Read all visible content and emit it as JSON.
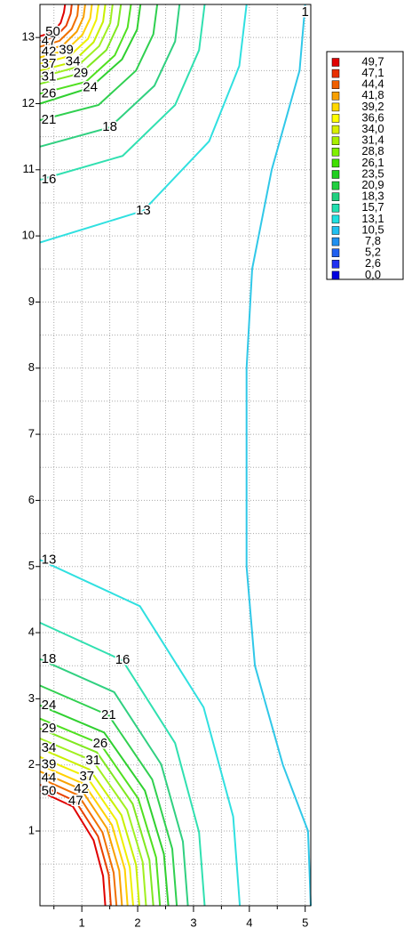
{
  "chart_data": {
    "type": "contour",
    "xlim": [
      0.25,
      5.1
    ],
    "ylim": [
      -0.13,
      13.5
    ],
    "xticks": [
      1,
      2,
      3,
      4,
      5
    ],
    "yticks": [
      1,
      2,
      3,
      4,
      5,
      6,
      7,
      8,
      9,
      10,
      11,
      12,
      13
    ],
    "minor_xticks": [
      0.5,
      1.5,
      2.5,
      3.5,
      4.5
    ],
    "minor_yticks": [
      0.5,
      1.5,
      2.5,
      3.5,
      4.5,
      5.5,
      6.5,
      7.5,
      8.5,
      9.5,
      10.5,
      11.5,
      12.5,
      13.5
    ],
    "grid": true,
    "legend_position": "right",
    "legend": {
      "labels": [
        "49,7",
        "47,1",
        "44,4",
        "41,8",
        "39,2",
        "36,6",
        "34,0",
        "31,4",
        "28,8",
        "26,1",
        "23,5",
        "20,9",
        "18,3",
        "15,7",
        "13,1",
        "10,5",
        "7,8",
        "5,2",
        "2,6",
        "0,0"
      ],
      "colors": [
        "#e00000",
        "#e83000",
        "#f06000",
        "#f8a000",
        "#ffd800",
        "#ffff00",
        "#d8f000",
        "#a8f000",
        "#80f000",
        "#40e000",
        "#20d020",
        "#20d040",
        "#20d080",
        "#20e0b0",
        "#20e0e0",
        "#20c0f0",
        "#2090f0",
        "#2060f0",
        "#2030f0",
        "#0000e0"
      ]
    },
    "series": [
      {
        "name": "13",
        "color": "#30e0e0",
        "x": [
          0.25,
          2.04,
          3.18,
          3.71,
          3.83
        ],
        "y": [
          5.1,
          4.4,
          2.87,
          1.22,
          -0.13
        ]
      },
      {
        "name": "16",
        "color": "#30e0b0",
        "x": [
          0.25,
          1.73,
          2.67,
          3.1,
          3.2
        ],
        "y": [
          4.15,
          3.58,
          2.33,
          0.98,
          -0.13
        ]
      },
      {
        "name": "18",
        "color": "#30d080",
        "x": [
          0.25,
          1.58,
          2.42,
          2.81,
          2.9
        ],
        "y": [
          3.6,
          3.1,
          2.01,
          0.84,
          -0.13
        ]
      },
      {
        "name": "21",
        "color": "#30d050",
        "x": [
          0.25,
          1.48,
          2.26,
          2.62,
          2.7
        ],
        "y": [
          3.2,
          2.75,
          1.78,
          0.73,
          -0.13
        ]
      },
      {
        "name": "24",
        "color": "#30d030",
        "x": [
          0.25,
          1.4,
          2.13,
          2.47,
          2.55
        ],
        "y": [
          2.9,
          2.49,
          1.61,
          0.65,
          -0.13
        ]
      },
      {
        "name": "26",
        "color": "#50e020",
        "x": [
          0.25,
          1.33,
          2.01,
          2.33,
          2.4
        ],
        "y": [
          2.7,
          2.32,
          1.49,
          0.6,
          -0.13
        ]
      },
      {
        "name": "29",
        "color": "#80e820",
        "x": [
          0.25,
          1.27,
          1.91,
          2.21,
          2.28
        ],
        "y": [
          2.55,
          2.19,
          1.41,
          0.56,
          -0.13
        ]
      },
      {
        "name": "31",
        "color": "#a0f020",
        "x": [
          0.25,
          1.2,
          1.81,
          2.09,
          2.15
        ],
        "y": [
          2.4,
          2.06,
          1.32,
          0.53,
          -0.13
        ]
      },
      {
        "name": "34",
        "color": "#c8f000",
        "x": [
          0.25,
          1.14,
          1.71,
          1.97,
          2.03
        ],
        "y": [
          2.25,
          1.93,
          1.24,
          0.49,
          -0.13
        ]
      },
      {
        "name": "37",
        "color": "#f0f000",
        "x": [
          0.25,
          1.09,
          1.62,
          1.86,
          1.92
        ],
        "y": [
          2.12,
          1.82,
          1.16,
          0.45,
          -0.13
        ]
      },
      {
        "name": "39",
        "color": "#ffd000",
        "x": [
          0.25,
          1.04,
          1.54,
          1.77,
          1.82
        ],
        "y": [
          2.0,
          1.71,
          1.09,
          0.42,
          -0.13
        ]
      },
      {
        "name": "42",
        "color": "#f8a000",
        "x": [
          0.25,
          0.99,
          1.45,
          1.67,
          1.72
        ],
        "y": [
          1.9,
          1.63,
          1.04,
          0.4,
          -0.13
        ]
      },
      {
        "name": "44",
        "color": "#f07000",
        "x": [
          0.25,
          0.94,
          1.37,
          1.57,
          1.62
        ],
        "y": [
          1.8,
          1.54,
          0.98,
          0.37,
          -0.13
        ]
      },
      {
        "name": "47",
        "color": "#e84000",
        "x": [
          0.25,
          0.89,
          1.29,
          1.48,
          1.52
        ],
        "y": [
          1.7,
          1.45,
          0.92,
          0.34,
          -0.13
        ]
      },
      {
        "name": "50",
        "color": "#e00000",
        "x": [
          0.25,
          0.84,
          1.21,
          1.38,
          1.42
        ],
        "y": [
          1.6,
          1.37,
          0.86,
          0.32,
          -0.13
        ]
      },
      {
        "name": "13",
        "color": "#30e0e0",
        "x": [
          0.25,
          2.1,
          3.28,
          3.82,
          3.95
        ],
        "y": [
          9.9,
          10.38,
          11.43,
          12.57,
          13.5
        ]
      },
      {
        "name": "16",
        "color": "#30e0b0",
        "x": [
          0.25,
          1.73,
          2.67,
          3.1,
          3.2
        ],
        "y": [
          10.85,
          11.21,
          11.98,
          12.81,
          13.5
        ]
      },
      {
        "name": "18",
        "color": "#30d080",
        "x": [
          0.25,
          1.5,
          2.3,
          2.67,
          2.75
        ],
        "y": [
          11.35,
          11.64,
          12.27,
          12.94,
          13.5
        ]
      },
      {
        "name": "21",
        "color": "#30d050",
        "x": [
          0.25,
          1.3,
          1.97,
          2.28,
          2.35
        ],
        "y": [
          11.75,
          11.98,
          12.5,
          13.05,
          13.5
        ]
      },
      {
        "name": "24",
        "color": "#30d030",
        "x": [
          0.25,
          1.15,
          1.72,
          1.99,
          2.05
        ],
        "y": [
          12.0,
          12.24,
          12.67,
          13.12,
          13.5
        ]
      },
      {
        "name": "26",
        "color": "#50e020",
        "x": [
          0.25,
          1.07,
          1.59,
          1.82,
          1.88
        ],
        "y": [
          12.15,
          12.33,
          12.73,
          13.15,
          13.5
        ]
      },
      {
        "name": "29",
        "color": "#80e820",
        "x": [
          0.25,
          0.98,
          1.44,
          1.65,
          1.7
        ],
        "y": [
          12.3,
          12.46,
          12.81,
          13.19,
          13.5
        ]
      },
      {
        "name": "31",
        "color": "#a0f020",
        "x": [
          0.25,
          0.9,
          1.31,
          1.51,
          1.55
        ],
        "y": [
          12.4,
          12.55,
          12.87,
          13.22,
          13.5
        ]
      },
      {
        "name": "34",
        "color": "#c8f000",
        "x": [
          0.25,
          0.84,
          1.21,
          1.38,
          1.42
        ],
        "y": [
          12.5,
          12.63,
          12.93,
          13.24,
          13.5
        ]
      },
      {
        "name": "37",
        "color": "#f0f000",
        "x": [
          0.25,
          0.78,
          1.11,
          1.26,
          1.3
        ],
        "y": [
          12.6,
          12.72,
          12.98,
          13.27,
          13.5
        ]
      },
      {
        "name": "39",
        "color": "#ffd000",
        "x": [
          0.25,
          0.72,
          1.01,
          1.15,
          1.18
        ],
        "y": [
          12.7,
          12.81,
          13.04,
          13.29,
          13.5
        ]
      },
      {
        "name": "42",
        "color": "#f8a000",
        "x": [
          0.25,
          0.66,
          0.91,
          1.03,
          1.06
        ],
        "y": [
          12.78,
          12.88,
          13.09,
          13.31,
          13.5
        ]
      },
      {
        "color": "#f07000",
        "x": [
          0.25,
          0.6,
          0.82,
          0.92,
          0.94
        ],
        "y": [
          12.86,
          12.95,
          13.13,
          13.33,
          13.5
        ]
      },
      {
        "name": "47",
        "color": "#e84000",
        "x": [
          0.25,
          0.54,
          0.72,
          0.8,
          0.82
        ],
        "y": [
          12.94,
          13.02,
          13.18,
          13.36,
          13.5
        ]
      },
      {
        "name": "50",
        "color": "#e00000",
        "x": [
          0.25,
          0.48,
          0.62,
          0.68,
          0.7
        ],
        "y": [
          13.02,
          13.08,
          13.22,
          13.38,
          13.5
        ]
      },
      {
        "name": "1",
        "color": "#30c8e8",
        "x": [
          5.1,
          5.05,
          4.6,
          4.1,
          3.95,
          3.95,
          4.05,
          4.4,
          4.9,
          5.0
        ],
        "y": [
          -0.13,
          1,
          2,
          3.5,
          5,
          8,
          9.5,
          11,
          12.5,
          13.5
        ]
      }
    ]
  }
}
